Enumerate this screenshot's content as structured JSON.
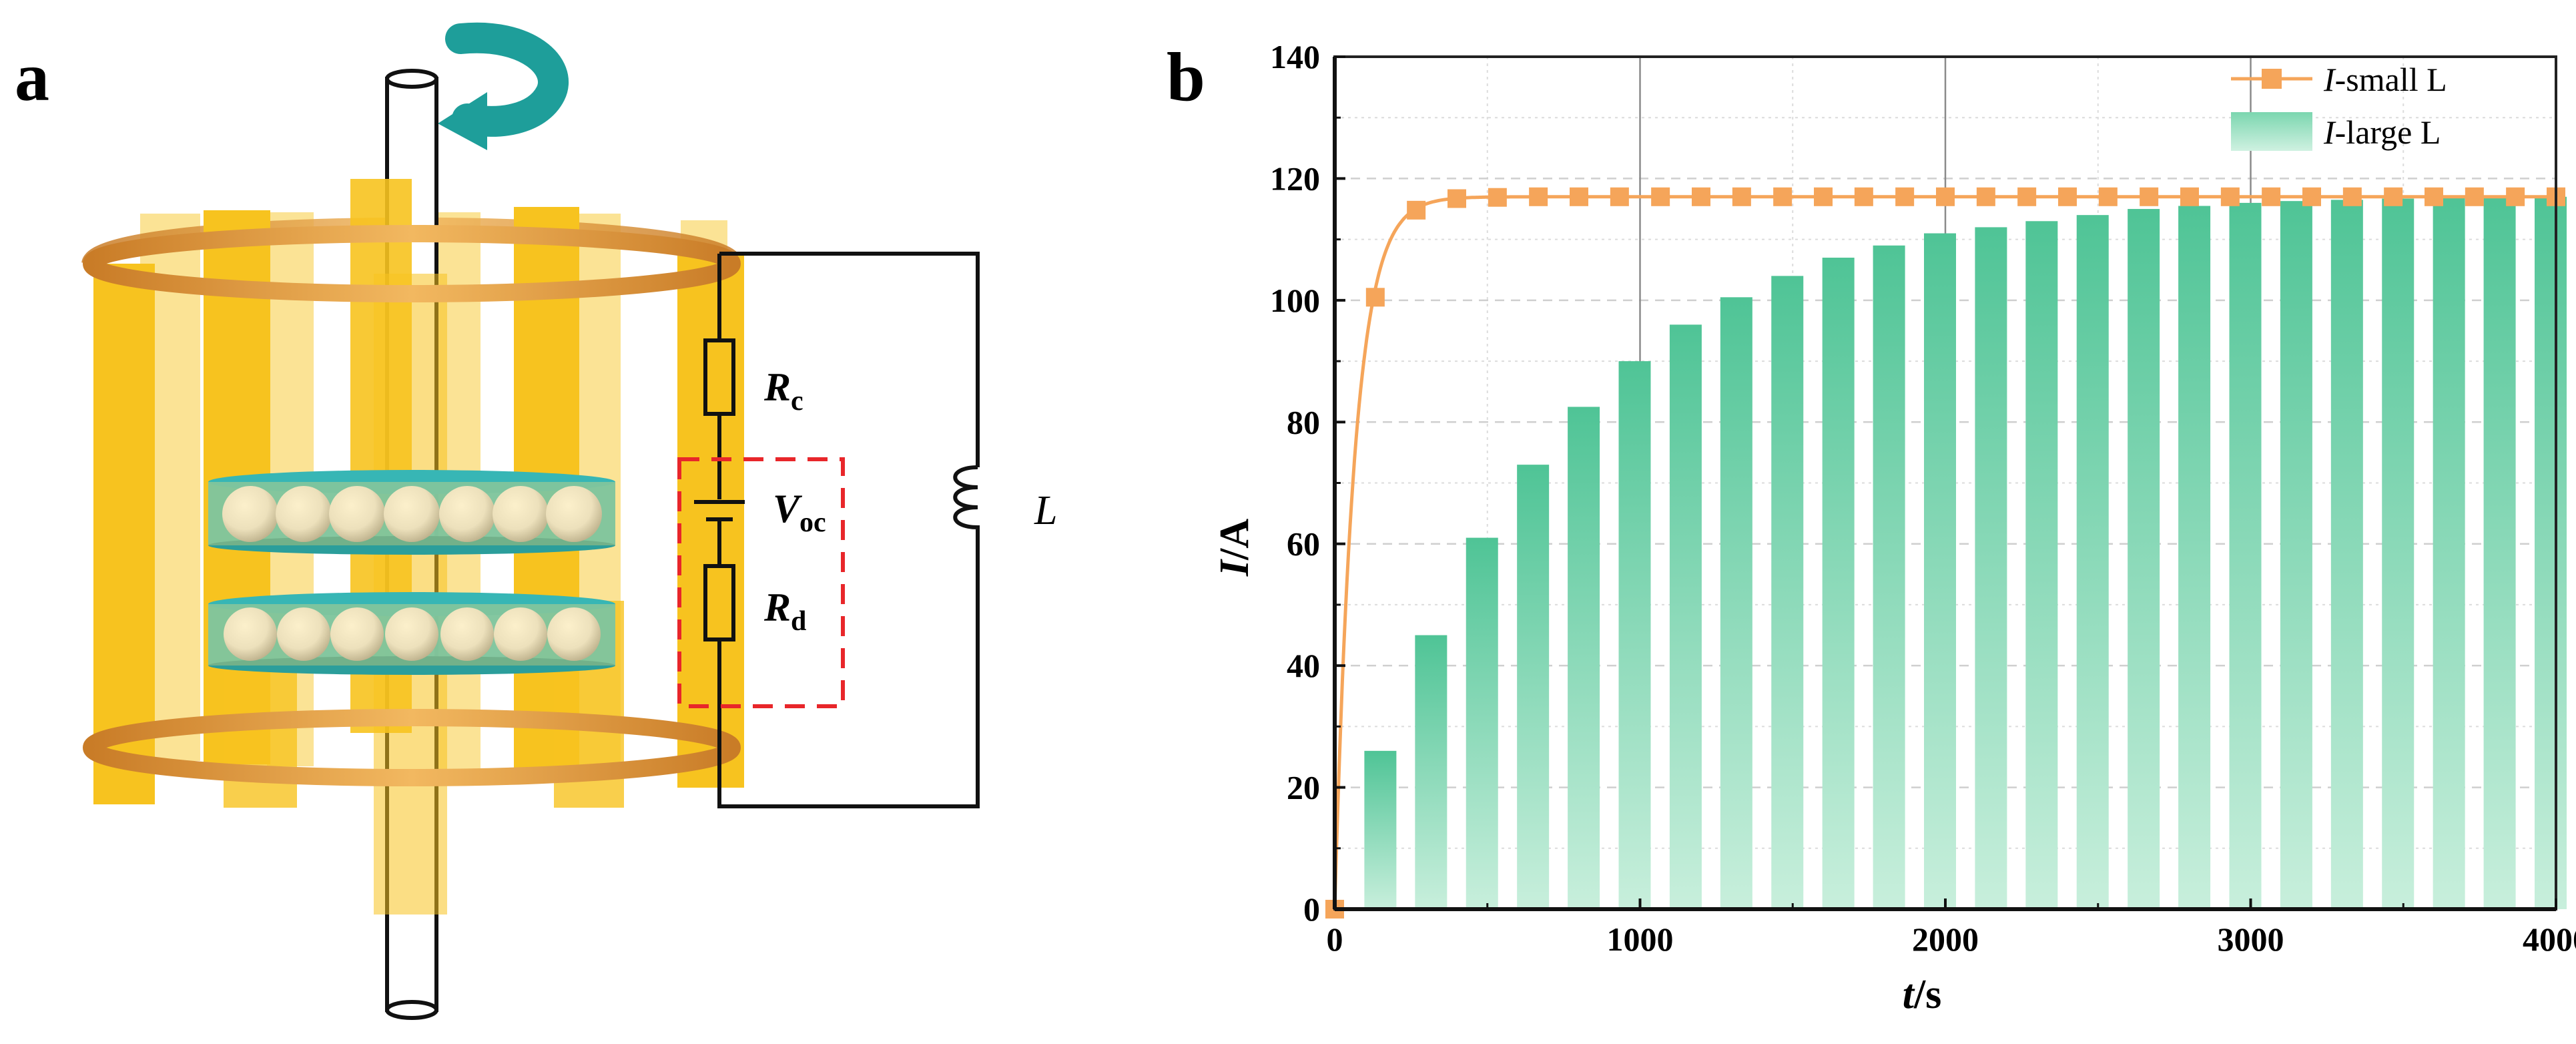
{
  "panel_a": {
    "label": "a",
    "components": {
      "rc": {
        "symbol": "R",
        "sub": "c"
      },
      "voc": {
        "symbol": "V",
        "sub": "oc"
      },
      "rd": {
        "symbol": "R",
        "sub": "d"
      },
      "inductor": {
        "symbol": "L"
      }
    },
    "colors": {
      "gold": "#F7C31F",
      "gold_light": "#FBE08A",
      "teal": "#1E9E9A",
      "ring": "#D08A2E",
      "dashed_box": "#E8262A"
    }
  },
  "panel_b": {
    "label": "b"
  },
  "chart_data": {
    "type": "line+bar",
    "title": "",
    "xlabel": {
      "italic": "t",
      "rest": "/s"
    },
    "ylabel": {
      "italic": "I",
      "rest": "/A"
    },
    "xlim": [
      0,
      4000
    ],
    "ylim": [
      0,
      140
    ],
    "x_ticks": [
      0,
      1000,
      2000,
      3000,
      4000
    ],
    "y_ticks": [
      0,
      20,
      40,
      60,
      80,
      100,
      120,
      140
    ],
    "grid": "dashed major + dotted minor",
    "legend_position": "top-right",
    "series": [
      {
        "name": "I-small L",
        "name_italic": "I",
        "name_rest": "-small L",
        "kind": "line",
        "color": "#F5A55A",
        "markers_x": [
          0,
          133,
          267,
          400,
          533,
          667,
          800,
          933,
          1067,
          1200,
          1333,
          1467,
          1600,
          1733,
          1867,
          2000,
          2133,
          2267,
          2400,
          2533,
          2667,
          2800,
          2933,
          3067,
          3200,
          3333,
          3467,
          3600,
          3733,
          3867,
          4000
        ],
        "markers_y": [
          0,
          100.5,
          114.8,
          116.7,
          116.9,
          117,
          117,
          117,
          117,
          117,
          117,
          117,
          117,
          117,
          117,
          117,
          117,
          117,
          117,
          117,
          117,
          117,
          117,
          117,
          117,
          117,
          117,
          117,
          117,
          117,
          117
        ],
        "curve": "I = 117 * (1 - exp(-t/65))"
      },
      {
        "name": "I-large L",
        "name_italic": "I",
        "name_rest": "-large L",
        "kind": "bar",
        "color": "#5CC99E",
        "x": [
          167,
          333,
          500,
          667,
          833,
          1000,
          1167,
          1333,
          1500,
          1667,
          1833,
          2000,
          2167,
          2333,
          2500,
          2667,
          2833,
          3000,
          3167,
          3333,
          3500,
          3667,
          3833,
          4000
        ],
        "values": [
          26,
          45,
          61,
          73,
          82.5,
          90,
          96,
          100.5,
          104,
          107,
          109,
          111,
          112,
          113,
          114,
          115,
          115.5,
          116,
          116.3,
          116.5,
          116.7,
          116.8,
          116.9,
          117
        ]
      }
    ]
  }
}
